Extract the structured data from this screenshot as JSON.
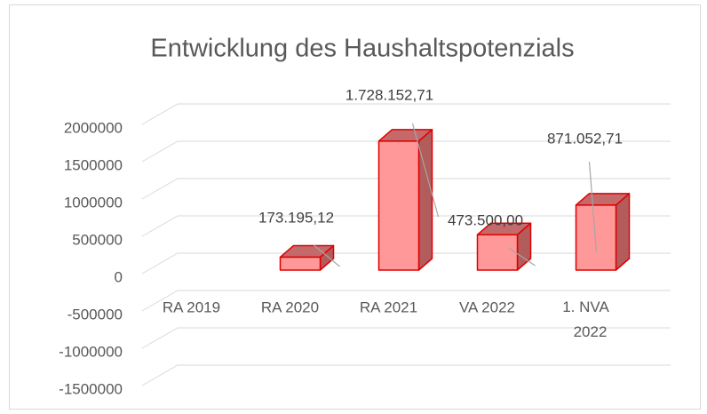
{
  "chart_data": {
    "type": "bar3d",
    "title": "Entwicklung des Haushaltspotenzials",
    "categories": [
      "RA 2019",
      "RA 2020",
      "RA 2021",
      "VA 2022",
      "1. NVA 2022"
    ],
    "values": [
      null,
      173195.12,
      1728152.71,
      473500,
      871052.71
    ],
    "value_labels": [
      null,
      "173.195,12",
      "1.728.152,71",
      "473.500,00",
      "871.052,71"
    ],
    "color": "#ff9999",
    "ylim": [
      -1500000,
      2000000
    ],
    "yticks": [
      -1500000,
      -1000000,
      -500000,
      0,
      500000,
      1000000,
      1500000,
      2000000
    ],
    "grid": true
  }
}
